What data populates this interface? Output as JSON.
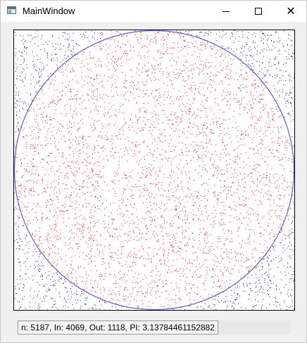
{
  "window": {
    "title": "MainWindow",
    "minimize_label": "—",
    "maximize_label": "☐",
    "close_label": "✕"
  },
  "simulation": {
    "n": 5187,
    "inside": 4069,
    "outside": 1118,
    "inside_color": "#ff0000",
    "outside_color": "#0000cc",
    "circle_color": "#6a5acd",
    "background_color": "#ffffff"
  },
  "status": {
    "text": "n: 5187, In: 4069, Out: 1118, PI: 3.13784461152882"
  }
}
